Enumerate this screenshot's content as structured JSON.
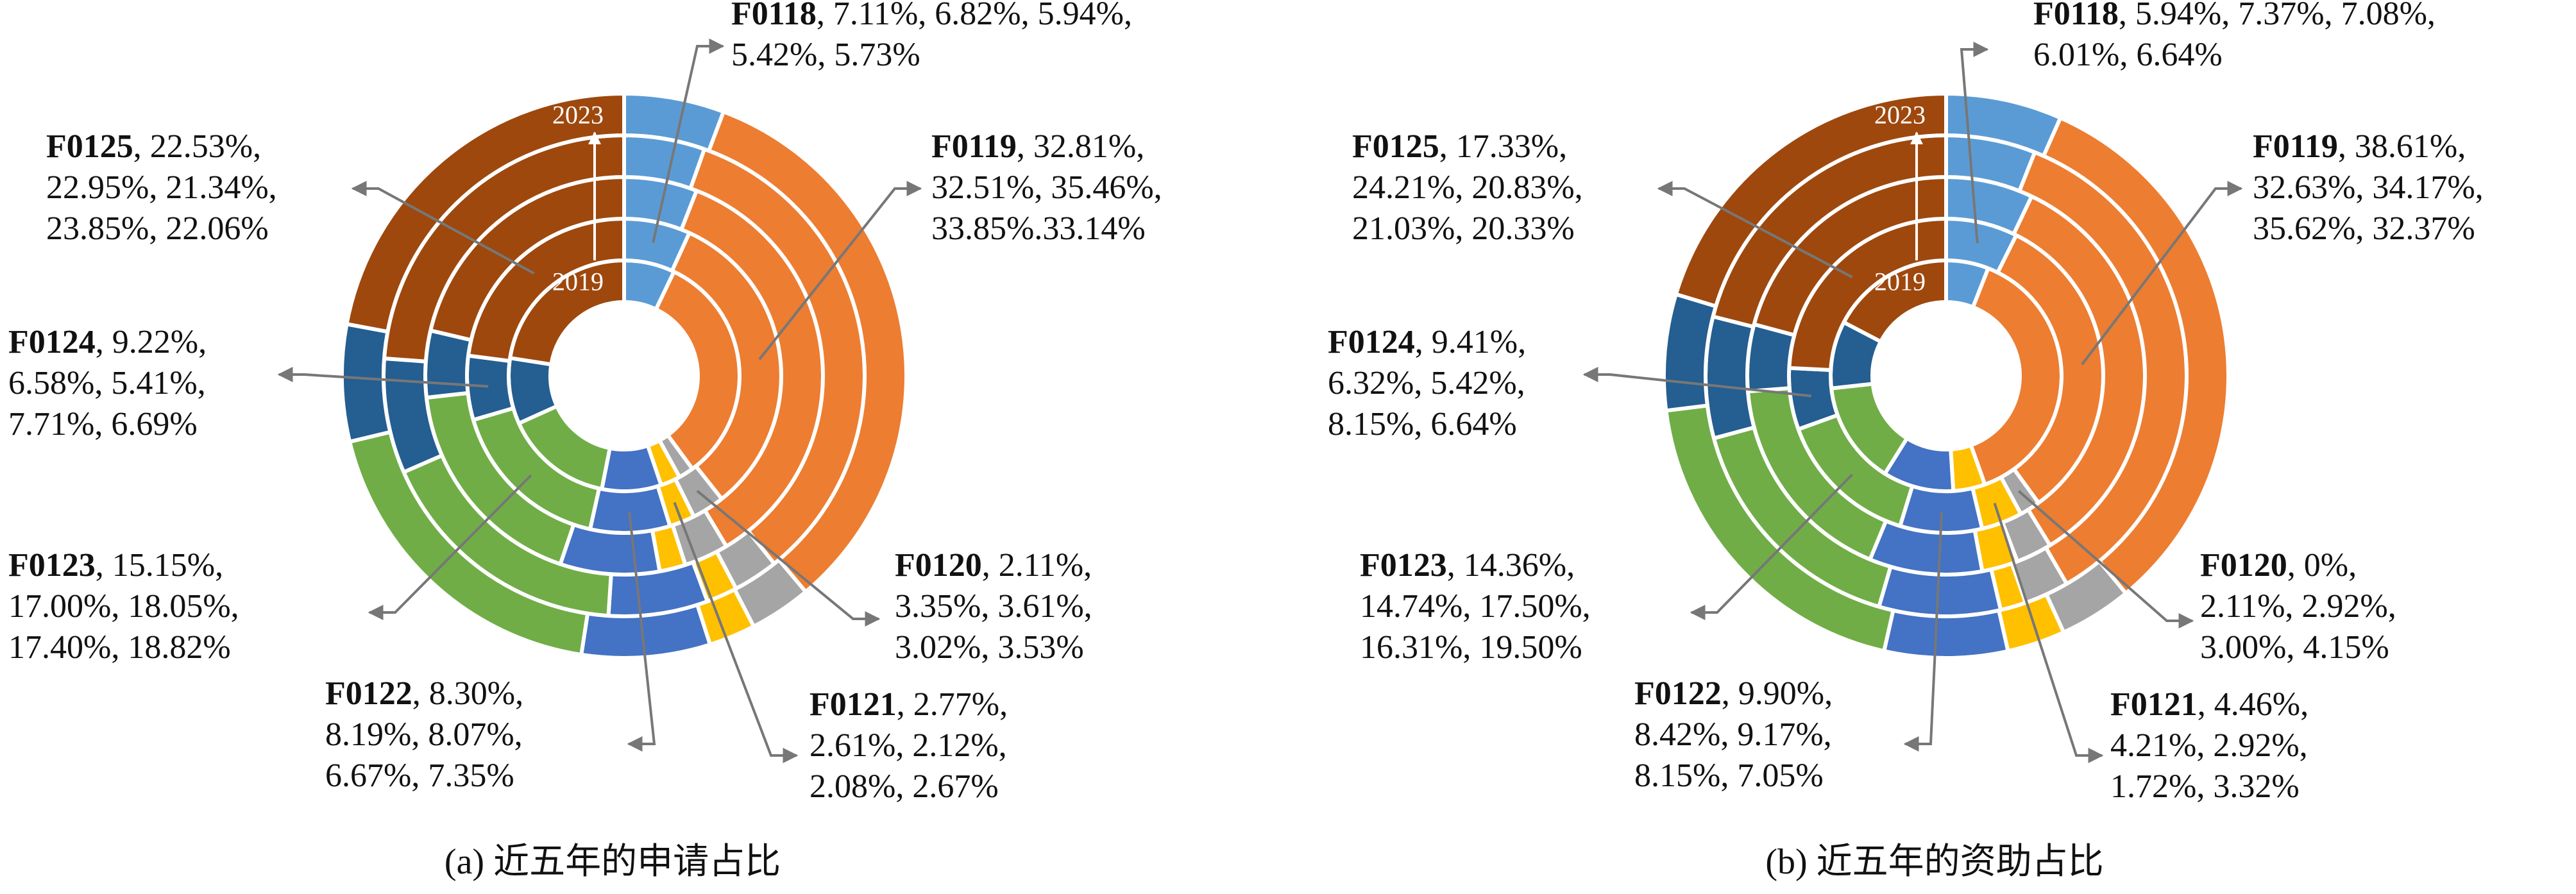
{
  "chart_data": [
    {
      "type": "donut",
      "caption": "(a) 近五年的申请占比",
      "ring_labels": [
        "2019",
        "2023"
      ],
      "series": [
        {
          "name": "F0118",
          "color": "#5b9bd5",
          "values": [
            7.11,
            6.82,
            5.94,
            5.42,
            5.73
          ],
          "value_labels": [
            ", 7.11%,",
            "6.82%,",
            "5.94%,",
            "5.42%,",
            "5.73%"
          ]
        },
        {
          "name": "F0119",
          "color": "#ed7d31",
          "values": [
            32.81,
            32.51,
            35.46,
            33.85,
            33.14
          ],
          "value_labels": [
            ", 32.81%,",
            "32.51%,",
            "35.46%,",
            "33.85%.",
            "33.14%"
          ]
        },
        {
          "name": "F0120",
          "color": "#a5a5a5",
          "values": [
            2.11,
            3.35,
            3.61,
            3.02,
            3.53
          ],
          "value_labels": [
            ", 2.11%,",
            "3.35%,",
            "3.61%,",
            "3.02%,",
            "3.53%"
          ]
        },
        {
          "name": "F0121",
          "color": "#ffc000",
          "values": [
            2.77,
            2.61,
            2.12,
            2.08,
            2.67
          ],
          "value_labels": [
            ", 2.77%,",
            "2.61%,",
            "2.12%,",
            "2.08%,",
            "2.67%"
          ]
        },
        {
          "name": "F0122",
          "color": "#4472c4",
          "values": [
            8.3,
            8.19,
            8.07,
            6.67,
            7.35
          ],
          "value_labels": [
            ", 8.30%,",
            "8.19%,",
            "8.07%,",
            "6.67%,",
            "7.35%"
          ]
        },
        {
          "name": "F0123",
          "color": "#70ad47",
          "values": [
            15.15,
            17.0,
            18.05,
            17.4,
            18.82
          ],
          "value_labels": [
            ", 15.15%,",
            "17.00%,",
            "18.05%,",
            "17.40%,",
            "18.82%"
          ]
        },
        {
          "name": "F0124",
          "color": "#255e91",
          "values": [
            9.22,
            6.58,
            5.41,
            7.71,
            6.69
          ],
          "value_labels": [
            ", 9.22%,",
            "6.58%,",
            "5.41%,",
            "7.71%,",
            "6.69%"
          ]
        },
        {
          "name": "F0125",
          "color": "#9e480e",
          "values": [
            22.53,
            22.95,
            21.34,
            23.85,
            22.06
          ],
          "value_labels": [
            ", 22.53%,",
            "22.95%,",
            "21.34%,",
            "23.85%,",
            "22.06%"
          ]
        }
      ]
    },
    {
      "type": "donut",
      "caption": "(b) 近五年的资助占比",
      "ring_labels": [
        "2019",
        "2023"
      ],
      "series": [
        {
          "name": "F0118",
          "color": "#5b9bd5",
          "values": [
            5.94,
            7.37,
            7.08,
            6.01,
            6.64
          ],
          "value_labels": [
            ", 5.94%,",
            "7.37%,",
            "7.08%,",
            "6.01%,",
            "6.64%"
          ]
        },
        {
          "name": "F0119",
          "color": "#ed7d31",
          "values": [
            38.61,
            32.63,
            34.17,
            35.62,
            32.37
          ],
          "value_labels": [
            ", 38.61%,",
            "32.63%,",
            "34.17%,",
            "35.62%,",
            "32.37%"
          ]
        },
        {
          "name": "F0120",
          "color": "#a5a5a5",
          "values": [
            0,
            2.11,
            2.92,
            3.0,
            4.15
          ],
          "value_labels": [
            ", 0%,",
            "2.11%,",
            "2.92%,",
            "3.00%,",
            "4.15%"
          ]
        },
        {
          "name": "F0121",
          "color": "#ffc000",
          "values": [
            4.46,
            4.21,
            2.92,
            1.72,
            3.32
          ],
          "value_labels": [
            ", 4.46%,",
            "4.21%,",
            "2.92%,",
            "1.72%,",
            "3.32%"
          ]
        },
        {
          "name": "F0122",
          "color": "#4472c4",
          "values": [
            9.9,
            8.42,
            9.17,
            8.15,
            7.05
          ],
          "value_labels": [
            ", 9.90%,",
            "8.42%,",
            "9.17%,",
            "8.15%,",
            "7.05%"
          ]
        },
        {
          "name": "F0123",
          "color": "#70ad47",
          "values": [
            14.36,
            14.74,
            17.5,
            16.31,
            19.5
          ],
          "value_labels": [
            ", 14.36%,",
            "14.74%,",
            "17.50%,",
            "16.31%,",
            "19.50%"
          ]
        },
        {
          "name": "F0124",
          "color": "#255e91",
          "values": [
            9.41,
            6.32,
            5.42,
            8.15,
            6.64
          ],
          "value_labels": [
            ", 9.41%,",
            "6.32%,",
            "5.42%,",
            "8.15%,",
            "6.64%"
          ]
        },
        {
          "name": "F0125",
          "color": "#9e480e",
          "values": [
            17.33,
            24.21,
            20.83,
            21.03,
            20.33
          ],
          "value_labels": [
            ", 17.33%,",
            "24.21%,",
            "20.83%,",
            "21.03%,",
            "20.33%"
          ]
        }
      ]
    }
  ]
}
